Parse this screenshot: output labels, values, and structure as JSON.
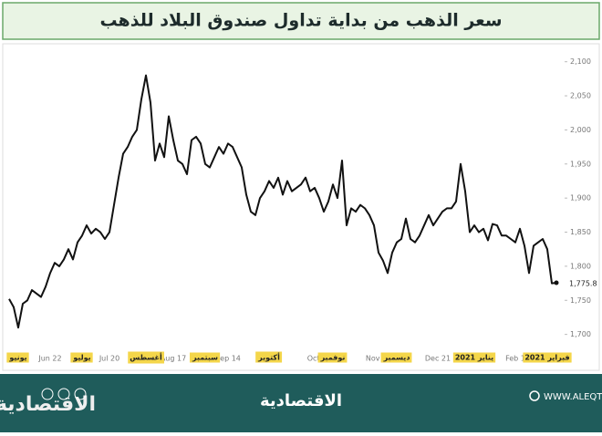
{
  "chart_data": {
    "type": "line",
    "title": "سعر الذهب من بداية تداول صندوق البلاد للذهب",
    "color": "#111111",
    "ylim": [
      1650,
      2125
    ],
    "yticks": [
      {
        "value": 1700,
        "label": "1,700"
      },
      {
        "value": 1750,
        "label": "1,750"
      },
      {
        "value": 1800,
        "label": "1,800"
      },
      {
        "value": 1850,
        "label": "1,850"
      },
      {
        "value": 1900,
        "label": "1,900"
      },
      {
        "value": 1950,
        "label": "1,950"
      },
      {
        "value": 2000,
        "label": "2,000"
      },
      {
        "value": 2050,
        "label": "2,050"
      },
      {
        "value": 2100,
        "label": "2,100"
      }
    ],
    "values": [
      1752,
      1740,
      1710,
      1745,
      1750,
      1765,
      1760,
      1755,
      1770,
      1790,
      1805,
      1800,
      1810,
      1825,
      1810,
      1835,
      1845,
      1860,
      1848,
      1855,
      1850,
      1840,
      1850,
      1890,
      1930,
      1965,
      1975,
      1990,
      2000,
      2045,
      2080,
      2040,
      1955,
      1980,
      1960,
      2020,
      1985,
      1955,
      1950,
      1935,
      1985,
      1990,
      1980,
      1950,
      1945,
      1960,
      1975,
      1965,
      1980,
      1975,
      1960,
      1945,
      1905,
      1880,
      1875,
      1900,
      1910,
      1925,
      1915,
      1930,
      1905,
      1925,
      1910,
      1915,
      1920,
      1930,
      1910,
      1915,
      1900,
      1880,
      1895,
      1920,
      1900,
      1955,
      1860,
      1885,
      1880,
      1890,
      1885,
      1875,
      1860,
      1820,
      1808,
      1790,
      1820,
      1835,
      1840,
      1870,
      1840,
      1835,
      1845,
      1860,
      1875,
      1860,
      1870,
      1880,
      1885,
      1885,
      1895,
      1950,
      1910,
      1850,
      1860,
      1850,
      1855,
      1838,
      1862,
      1860,
      1845,
      1845,
      1840,
      1835,
      1855,
      1830,
      1790,
      1830,
      1835,
      1840,
      1825,
      1775,
      1775.8
    ],
    "value_labels": [
      null,
      null,
      null,
      null,
      null,
      null,
      null,
      null,
      null,
      null,
      null,
      null,
      null,
      null,
      null,
      null,
      null,
      null,
      null,
      null,
      null,
      null,
      null,
      null,
      null,
      null,
      null,
      null,
      null,
      null,
      null,
      null,
      null,
      null,
      null,
      null,
      null,
      null,
      null,
      null,
      null,
      null,
      null,
      null,
      null,
      null,
      null,
      null,
      null,
      null,
      null,
      null,
      null,
      null,
      null,
      null,
      null,
      null,
      null,
      null,
      null,
      null,
      null,
      null,
      null,
      null,
      null,
      null,
      null,
      null,
      null,
      null,
      null,
      null,
      null,
      null,
      null,
      null,
      null,
      null,
      null,
      null,
      null,
      null,
      null,
      null,
      null,
      null,
      null,
      null,
      null,
      null,
      null,
      null,
      null,
      null,
      null,
      null,
      null,
      null,
      null,
      null,
      null,
      null,
      null,
      null,
      null,
      null,
      null,
      null,
      null,
      null,
      null,
      null,
      null,
      null,
      null,
      null,
      null,
      null,
      "1,775.8"
    ],
    "categories": [
      null,
      null,
      null,
      null,
      null,
      null,
      null,
      null,
      null,
      "Jun 22",
      null,
      null,
      null,
      null,
      null,
      null,
      null,
      null,
      null,
      null,
      null,
      null,
      "Jul 20",
      null,
      null,
      null,
      null,
      null,
      null,
      null,
      null,
      null,
      null,
      null,
      null,
      null,
      "Aug 17",
      null,
      null,
      null,
      null,
      null,
      null,
      null,
      null,
      null,
      null,
      null,
      "Sep 14",
      null,
      null,
      null,
      null,
      null,
      null,
      null,
      null,
      null,
      null,
      null,
      null,
      null,
      null,
      null,
      null,
      null,
      null,
      null,
      "Oct 26",
      null,
      null,
      null,
      null,
      null,
      null,
      null,
      null,
      null,
      null,
      null,
      null,
      "Nov 23",
      null,
      null,
      null,
      null,
      null,
      null,
      null,
      null,
      null,
      null,
      null,
      null,
      "Dec 21",
      null,
      null,
      null,
      null,
      null,
      null,
      null,
      null,
      null,
      null,
      null,
      null,
      null,
      null,
      null,
      null,
      "Feb 1",
      null,
      null,
      null,
      null,
      null,
      null,
      null,
      null,
      null
    ],
    "month_labels": [
      null,
      null,
      "يونيو",
      null,
      null,
      null,
      null,
      null,
      null,
      null,
      null,
      null,
      null,
      null,
      null,
      null,
      "يوليو",
      null,
      null,
      null,
      null,
      null,
      null,
      null,
      null,
      null,
      null,
      null,
      null,
      null,
      "أغسطس",
      null,
      null,
      null,
      null,
      null,
      null,
      null,
      null,
      null,
      null,
      null,
      null,
      "سبتمبر",
      null,
      null,
      null,
      null,
      null,
      null,
      null,
      null,
      null,
      null,
      null,
      null,
      null,
      "أكتوبر",
      null,
      null,
      null,
      null,
      null,
      null,
      null,
      null,
      null,
      null,
      null,
      null,
      null,
      "نوفمبر",
      null,
      null,
      null,
      null,
      null,
      null,
      null,
      null,
      null,
      null,
      null,
      null,
      null,
      "ديسمبر",
      null,
      null,
      null,
      null,
      null,
      null,
      null,
      null,
      null,
      null,
      null,
      null,
      null,
      null,
      null,
      null,
      "يناير 2021",
      null,
      null,
      null,
      null,
      null,
      null,
      null,
      null,
      null,
      null,
      null,
      null,
      null,
      null,
      null,
      "فبراير 2021",
      null,
      null
    ]
  },
  "footer": {
    "logo": "الاقتصادية",
    "brand": "الاقتصادية",
    "url": "WWW.ALEQT.COM"
  }
}
